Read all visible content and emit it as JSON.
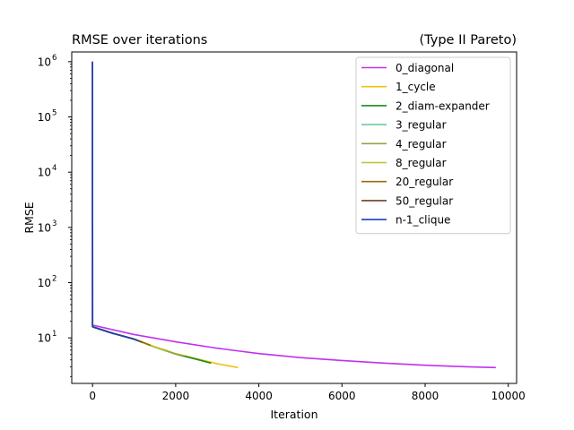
{
  "chart_data": {
    "type": "line",
    "title": "RMSE over iterations",
    "title_right": "(Type II Pareto)",
    "xlabel": "Iteration",
    "ylabel": "RMSE",
    "xlim": [
      -500,
      10200
    ],
    "ylim": [
      1.5,
      1500000
    ],
    "yscale": "log",
    "x_ticks": [
      0,
      2000,
      4000,
      6000,
      8000,
      10000
    ],
    "x_tick_labels": [
      "0",
      "2000",
      "4000",
      "6000",
      "8000",
      "10000"
    ],
    "y_ticks": [
      10,
      100,
      1000,
      10000,
      100000,
      1000000
    ],
    "y_tick_labels": [
      {
        "base": "10",
        "exp": "1"
      },
      {
        "base": "10",
        "exp": "2"
      },
      {
        "base": "10",
        "exp": "3"
      },
      {
        "base": "10",
        "exp": "4"
      },
      {
        "base": "10",
        "exp": "5"
      },
      {
        "base": "10",
        "exp": "6"
      }
    ],
    "grid": false,
    "legend_position": "top-right",
    "series": [
      {
        "name": "0_diagonal",
        "color": "#c030f0",
        "x": [
          0,
          1,
          10,
          500,
          1000,
          2000,
          3000,
          4000,
          5000,
          6000,
          7000,
          8000,
          9000,
          9700
        ],
        "y": [
          1000000,
          17.5,
          17,
          14,
          11.5,
          8.5,
          6.5,
          5.2,
          4.4,
          3.9,
          3.5,
          3.2,
          3.0,
          2.9
        ]
      },
      {
        "name": "1_cycle",
        "color": "#f0c010",
        "x": [
          0,
          1,
          10,
          500,
          1000,
          1500,
          2000,
          2500,
          3000,
          3500
        ],
        "y": [
          1000000,
          16.2,
          16,
          12.2,
          9.6,
          6.9,
          5.2,
          4.2,
          3.4,
          2.9
        ]
      },
      {
        "name": "2_diam-expander",
        "color": "#1a8c1a",
        "x": [
          0,
          1,
          10,
          500,
          1000,
          1500,
          2000,
          2500,
          2850
        ],
        "y": [
          1000000,
          16,
          15.8,
          12,
          9.5,
          6.8,
          5.1,
          4.1,
          3.5
        ]
      },
      {
        "name": "3_regular",
        "color": "#70c8a0",
        "x": [
          0,
          1,
          10,
          500,
          1000,
          1500,
          2000,
          2200
        ],
        "y": [
          1000000,
          16,
          15.8,
          12,
          9.5,
          6.8,
          5.1,
          4.6
        ]
      },
      {
        "name": "4_regular",
        "color": "#90a848",
        "x": [
          0,
          1,
          10,
          500,
          1000,
          1500,
          2000,
          2200
        ],
        "y": [
          1000000,
          16,
          15.8,
          12,
          9.5,
          6.8,
          5.1,
          4.6
        ]
      },
      {
        "name": "8_regular",
        "color": "#c0c030",
        "x": [
          0,
          1,
          10,
          500,
          1000,
          1500,
          1800
        ],
        "y": [
          1000000,
          16,
          15.8,
          12,
          9.5,
          6.8,
          5.9
        ]
      },
      {
        "name": "20_regular",
        "color": "#a06800",
        "x": [
          0,
          1,
          10,
          500,
          1000,
          1400
        ],
        "y": [
          1000000,
          16,
          15.8,
          12,
          9.5,
          7.3
        ]
      },
      {
        "name": "50_regular",
        "color": "#704020",
        "x": [
          0,
          1,
          10,
          500,
          1000,
          1200
        ],
        "y": [
          1000000,
          16,
          15.8,
          12,
          9.5,
          8.3
        ]
      },
      {
        "name": "n-1_clique",
        "color": "#1840c0",
        "x": [
          0,
          1,
          10,
          500,
          1000,
          1100
        ],
        "y": [
          1000000,
          16,
          15.8,
          12,
          9.5,
          8.9
        ]
      }
    ]
  }
}
